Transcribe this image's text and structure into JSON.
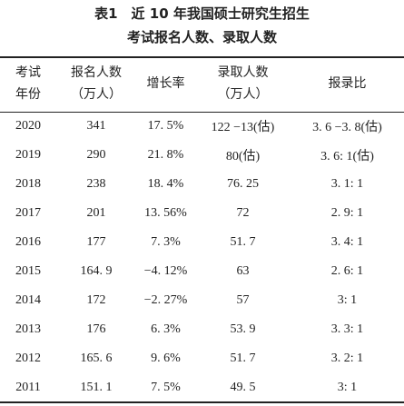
{
  "title": [
    "表1　近 10 年我国硕士研究生招生",
    "考试报名人数、录取人数"
  ],
  "table": {
    "header": [
      [
        "考试",
        "年份"
      ],
      [
        "报名人数",
        "（万人）"
      ],
      [
        "增长率"
      ],
      [
        "录取人数",
        "（万人）"
      ],
      [
        "报录比"
      ]
    ],
    "rows": [
      [
        "2020",
        "341",
        "17. 5%",
        "122 −13(估)",
        "3. 6 −3. 8(估)"
      ],
      [
        "2019",
        "290",
        "21. 8%",
        "80(估)",
        "3. 6: 1(估)"
      ],
      [
        "2018",
        "238",
        "18. 4%",
        "76. 25",
        "3. 1: 1"
      ],
      [
        "2017",
        "201",
        "13. 56%",
        "72",
        "2. 9: 1"
      ],
      [
        "2016",
        "177",
        "7. 3%",
        "51. 7",
        "3. 4: 1"
      ],
      [
        "2015",
        "164. 9",
        "−4. 12%",
        "63",
        "2. 6: 1"
      ],
      [
        "2014",
        "172",
        "−2. 27%",
        "57",
        "3: 1"
      ],
      [
        "2013",
        "176",
        "6. 3%",
        "53. 9",
        "3. 3: 1"
      ],
      [
        "2012",
        "165. 6",
        "9. 6%",
        "51. 7",
        "3. 2: 1"
      ],
      [
        "2011",
        "151. 1",
        "7. 5%",
        "49. 5",
        "3: 1"
      ]
    ]
  }
}
